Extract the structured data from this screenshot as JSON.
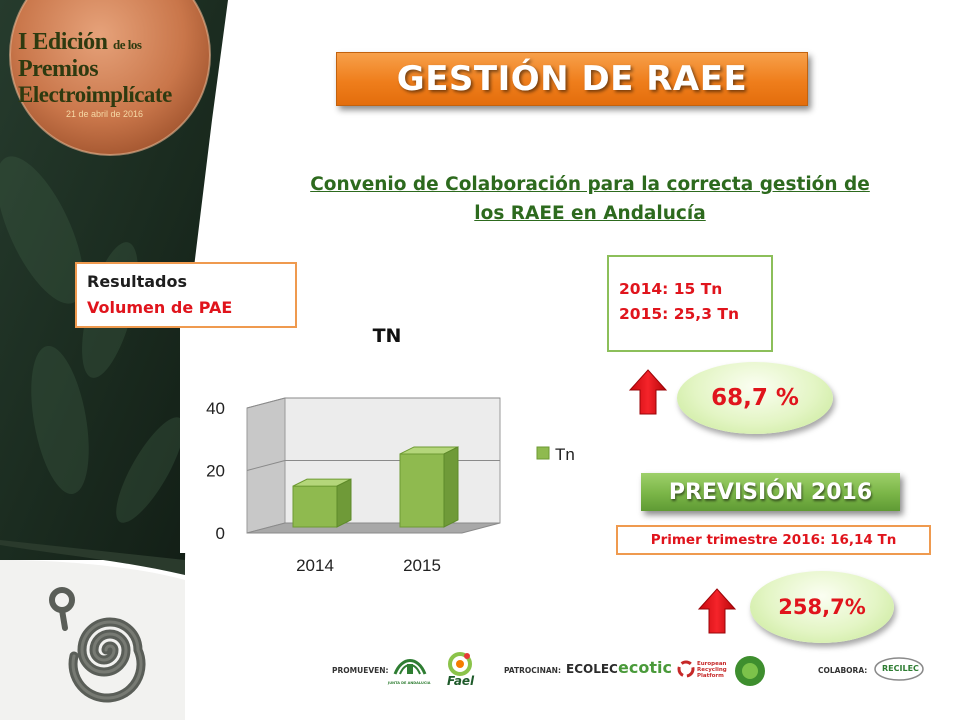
{
  "badge": {
    "line1_a": "I Edición",
    "line1_b": "de los",
    "line1_c": "Premios",
    "line2": "Electroimplícate",
    "date": "21 de abril de 2016"
  },
  "title": "GESTIÓN DE RAEE",
  "subtitle": {
    "line1": "Convenio de Colaboración para la correcta gestión de",
    "line2": "los RAEE en Andalucía"
  },
  "results_box": {
    "line1": "Resultados",
    "line2": "Volumen de PAE"
  },
  "values_box": {
    "line1": "2014: 15 Tn",
    "line2": "2015: 25,3 Tn"
  },
  "increase_2015": "68,7 %",
  "forecast": {
    "title": "PREVISIÓN 2016",
    "quarter": "Primer trimestre 2016: 16,14 Tn",
    "increase": "258,7%"
  },
  "footer": {
    "promote_label": "PROMUEVEN:",
    "sponsor_label": "PATROCINAN:",
    "collab_label": "COLABORA:",
    "logo_junta": "JUNTA DE ANDALUCIA",
    "logo_fael": "Fael",
    "logo_ecolec": "ECOLEC",
    "logo_ecotic": "ecotic",
    "logo_erp": "European Recycling Platform",
    "logo_reclec": "RECILEC"
  },
  "colors": {
    "orange": "#ef7e1c",
    "green": "#7ab547",
    "red": "#e0141c",
    "dark_green": "#2d6a1e"
  },
  "icons": [
    "arrow-up-icon",
    "spiral-logo-icon"
  ],
  "chart_data": {
    "type": "bar",
    "title": "TN",
    "categories": [
      "2014",
      "2015"
    ],
    "series": [
      {
        "name": "Tn",
        "values": [
          15,
          25.3
        ]
      }
    ],
    "ylim": [
      0,
      40
    ],
    "yticks": [
      0,
      20,
      40
    ],
    "grid": true,
    "legend": "right",
    "three_d": true,
    "color": "#8fba4f"
  }
}
